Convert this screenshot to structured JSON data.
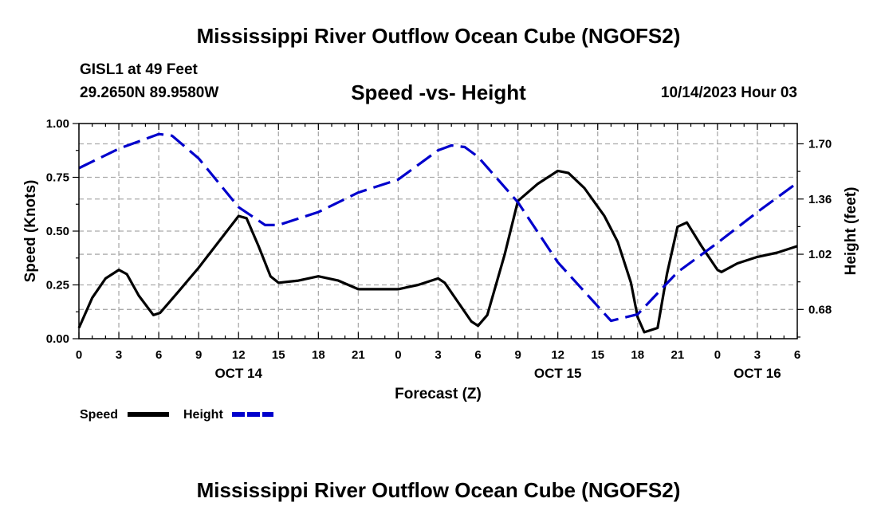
{
  "header": {
    "title": "Mississippi River Outflow Ocean Cube (NGOFS2)",
    "station": "GISL1 at 49 Feet",
    "coords": "29.2650N  89.9580W",
    "subtitle": "Speed -vs- Height",
    "datetime": "10/14/2023 Hour 03"
  },
  "footer": {
    "title": "Mississippi River Outflow Ocean Cube (NGOFS2)"
  },
  "chart_data": {
    "type": "line",
    "xlabel": "Forecast (Z)",
    "ylabel_left": "Speed (Knots)",
    "ylabel_right": "Height (feet)",
    "x_range": [
      0,
      54
    ],
    "ylim_left": [
      0,
      1.0
    ],
    "ylim_right": [
      0.5,
      1.825
    ],
    "left_ticks": [
      {
        "value": 0.0,
        "label": "0.00"
      },
      {
        "value": 0.25,
        "label": "0.25"
      },
      {
        "value": 0.5,
        "label": "0.50"
      },
      {
        "value": 0.75,
        "label": "0.75"
      },
      {
        "value": 1.0,
        "label": "1.00"
      }
    ],
    "right_ticks": [
      {
        "value": 0.68,
        "label": "0.68"
      },
      {
        "value": 1.02,
        "label": "1.02"
      },
      {
        "value": 1.36,
        "label": "1.36"
      },
      {
        "value": 1.7,
        "label": "1.70"
      }
    ],
    "x_ticks": [
      {
        "x": 0,
        "label": "0"
      },
      {
        "x": 3,
        "label": "3"
      },
      {
        "x": 6,
        "label": "6"
      },
      {
        "x": 9,
        "label": "9"
      },
      {
        "x": 12,
        "label": "12"
      },
      {
        "x": 15,
        "label": "15"
      },
      {
        "x": 18,
        "label": "18"
      },
      {
        "x": 21,
        "label": "21"
      },
      {
        "x": 24,
        "label": "0"
      },
      {
        "x": 27,
        "label": "3"
      },
      {
        "x": 30,
        "label": "6"
      },
      {
        "x": 33,
        "label": "9"
      },
      {
        "x": 36,
        "label": "12"
      },
      {
        "x": 39,
        "label": "15"
      },
      {
        "x": 42,
        "label": "18"
      },
      {
        "x": 45,
        "label": "21"
      },
      {
        "x": 48,
        "label": "0"
      },
      {
        "x": 51,
        "label": "3"
      },
      {
        "x": 54,
        "label": "6"
      }
    ],
    "day_labels": [
      {
        "x": 12,
        "label": "OCT 14"
      },
      {
        "x": 36,
        "label": "OCT 15"
      },
      {
        "x": 51,
        "label": "OCT 16"
      }
    ],
    "grid": true,
    "series": [
      {
        "name": "Speed",
        "axis": "left",
        "color": "#000000",
        "dash": "solid",
        "x": [
          0,
          1,
          2,
          3,
          3.6,
          4.5,
          5.6,
          6.1,
          7.5,
          9,
          10.5,
          12,
          12.6,
          13.5,
          14.4,
          15,
          16.5,
          18,
          19.5,
          21,
          22.5,
          24,
          25.5,
          27,
          27.5,
          28.5,
          29.5,
          30,
          30.7,
          32,
          33,
          34.5,
          35.5,
          36,
          36.8,
          38,
          39.5,
          40.5,
          41.5,
          42,
          42.5,
          43.5,
          44.2,
          45,
          45.7,
          46.8,
          48,
          48.3,
          49.5,
          51,
          52.5,
          54
        ],
        "values": [
          0.05,
          0.19,
          0.28,
          0.32,
          0.3,
          0.2,
          0.11,
          0.12,
          0.22,
          0.33,
          0.45,
          0.57,
          0.56,
          0.43,
          0.29,
          0.26,
          0.27,
          0.29,
          0.27,
          0.23,
          0.23,
          0.23,
          0.25,
          0.28,
          0.26,
          0.17,
          0.08,
          0.06,
          0.11,
          0.39,
          0.64,
          0.72,
          0.76,
          0.78,
          0.77,
          0.7,
          0.57,
          0.45,
          0.26,
          0.1,
          0.03,
          0.05,
          0.3,
          0.52,
          0.54,
          0.43,
          0.32,
          0.31,
          0.35,
          0.38,
          0.4,
          0.43
        ]
      },
      {
        "name": "Height",
        "axis": "right",
        "color": "#0000cc",
        "dash": "dashed",
        "x": [
          0,
          3,
          6,
          7,
          9,
          12,
          14,
          15,
          18,
          21,
          24,
          27,
          28,
          29,
          30,
          33,
          36,
          39,
          40,
          42,
          45,
          48,
          51,
          54
        ],
        "values": [
          1.55,
          1.67,
          1.76,
          1.75,
          1.61,
          1.31,
          1.2,
          1.2,
          1.28,
          1.4,
          1.48,
          1.66,
          1.69,
          1.68,
          1.62,
          1.34,
          0.97,
          0.7,
          0.61,
          0.65,
          0.91,
          1.09,
          1.28,
          1.46
        ]
      }
    ],
    "legend": [
      {
        "label": "Speed",
        "color": "#000000",
        "dash": "solid"
      },
      {
        "label": "Height",
        "color": "#0000cc",
        "dash": "dashed"
      }
    ]
  }
}
